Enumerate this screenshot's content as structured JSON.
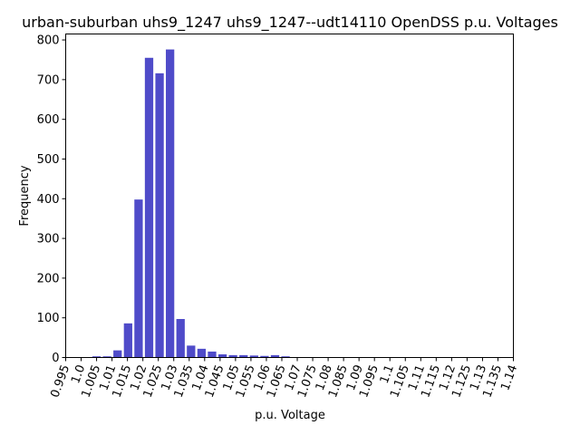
{
  "chart_data": {
    "type": "bar",
    "title": "urban-suburban uhs9_1247 uhs9_1247--udt14110 OpenDSS p.u. Voltages",
    "xlabel": "p.u. Voltage",
    "ylabel": "Frequency",
    "xlim": [
      0.995,
      1.14
    ],
    "ylim": [
      0,
      815
    ],
    "bin_width": 0.0034,
    "bar_color": "#4f4bc9",
    "x_ticks": [
      "0.995",
      "1.0",
      "1.005",
      "1.01",
      "1.015",
      "1.02",
      "1.025",
      "1.03",
      "1.035",
      "1.04",
      "1.045",
      "1.05",
      "1.055",
      "1.06",
      "1.065",
      "1.07",
      "1.075",
      "1.08",
      "1.085",
      "1.09",
      "1.095",
      "1.1",
      "1.105",
      "1.11",
      "1.115",
      "1.12",
      "1.125",
      "1.13",
      "1.135",
      "1.14"
    ],
    "y_ticks": [
      "0",
      "100",
      "200",
      "300",
      "400",
      "500",
      "600",
      "700",
      "800"
    ],
    "bins": [
      {
        "x": 1.005,
        "value": 3
      },
      {
        "x": 1.0084,
        "value": 3
      },
      {
        "x": 1.0118,
        "value": 18
      },
      {
        "x": 1.0152,
        "value": 86
      },
      {
        "x": 1.0186,
        "value": 398
      },
      {
        "x": 1.022,
        "value": 755
      },
      {
        "x": 1.0254,
        "value": 716
      },
      {
        "x": 1.0288,
        "value": 776
      },
      {
        "x": 1.0322,
        "value": 97
      },
      {
        "x": 1.0356,
        "value": 30
      },
      {
        "x": 1.039,
        "value": 22
      },
      {
        "x": 1.0424,
        "value": 15
      },
      {
        "x": 1.0458,
        "value": 8
      },
      {
        "x": 1.0492,
        "value": 6
      },
      {
        "x": 1.0526,
        "value": 6
      },
      {
        "x": 1.056,
        "value": 5
      },
      {
        "x": 1.0594,
        "value": 4
      },
      {
        "x": 1.0628,
        "value": 6
      },
      {
        "x": 1.0662,
        "value": 3
      },
      {
        "x": 1.0696,
        "value": 1
      },
      {
        "x": 1.073,
        "value": 1
      },
      {
        "x": 1.0764,
        "value": 1
      },
      {
        "x": 1.0798,
        "value": 1
      },
      {
        "x": 1.0832,
        "value": 1
      },
      {
        "x": 1.0866,
        "value": 1
      },
      {
        "x": 1.09,
        "value": 1
      },
      {
        "x": 1.0934,
        "value": 1
      },
      {
        "x": 1.0968,
        "value": 1
      },
      {
        "x": 1.1002,
        "value": 1
      },
      {
        "x": 1.1036,
        "value": 1
      },
      {
        "x": 1.107,
        "value": 1
      },
      {
        "x": 1.1104,
        "value": 1
      },
      {
        "x": 1.1138,
        "value": 1
      },
      {
        "x": 1.1172,
        "value": 1
      },
      {
        "x": 1.1206,
        "value": 1
      },
      {
        "x": 1.124,
        "value": 1
      },
      {
        "x": 1.1274,
        "value": 1
      },
      {
        "x": 1.1308,
        "value": 1
      },
      {
        "x": 1.1342,
        "value": 1
      },
      {
        "x": 1.1376,
        "value": 1
      }
    ],
    "grid": false,
    "legend": "none"
  }
}
